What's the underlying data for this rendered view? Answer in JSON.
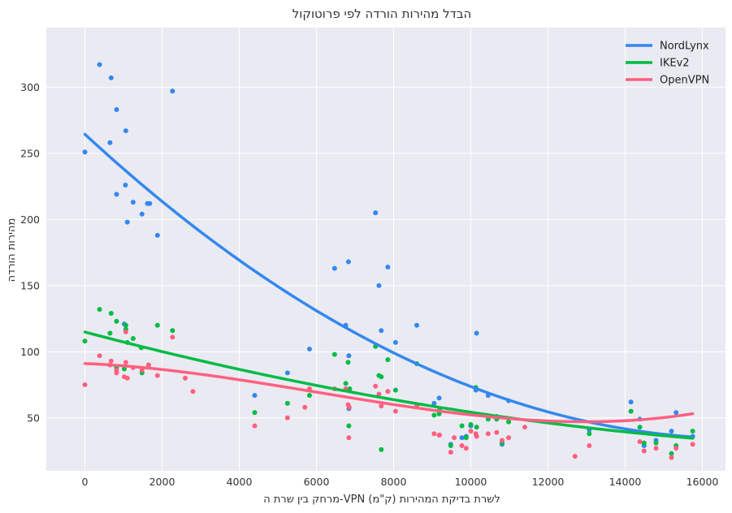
{
  "chart_data": {
    "type": "scatter",
    "title": "הבדל מהירות הורדה לפי פרוטוקול",
    "xlabel": "מרחק בין שרת ה-VPN לשרת בדיקת המהירות (ק\"מ)",
    "ylabel": "מהירות הורדה",
    "xlim": [
      -1000,
      16600
    ],
    "ylim": [
      10,
      345
    ],
    "xticks": [
      0,
      2000,
      4000,
      6000,
      8000,
      10000,
      12000,
      14000,
      16000
    ],
    "yticks": [
      50,
      100,
      150,
      200,
      250,
      300
    ],
    "grid": true,
    "legend_position": "top-right",
    "series": [
      {
        "name": "NordLynx",
        "color": "#3388ee",
        "points": [
          [
            0,
            251
          ],
          [
            380,
            317
          ],
          [
            650,
            258
          ],
          [
            680,
            307
          ],
          [
            820,
            283
          ],
          [
            820,
            219
          ],
          [
            1020,
            121
          ],
          [
            1050,
            226
          ],
          [
            1060,
            267
          ],
          [
            1100,
            198
          ],
          [
            1250,
            213
          ],
          [
            1480,
            204
          ],
          [
            1620,
            212
          ],
          [
            1680,
            212
          ],
          [
            1880,
            188
          ],
          [
            2270,
            297
          ],
          [
            4400,
            67
          ],
          [
            5250,
            84
          ],
          [
            5820,
            102
          ],
          [
            6470,
            163
          ],
          [
            6760,
            120
          ],
          [
            6830,
            168
          ],
          [
            6840,
            97
          ],
          [
            6840,
            57
          ],
          [
            7530,
            205
          ],
          [
            7620,
            150
          ],
          [
            7680,
            116
          ],
          [
            7850,
            164
          ],
          [
            8050,
            107
          ],
          [
            8600,
            120
          ],
          [
            9050,
            61
          ],
          [
            9180,
            65
          ],
          [
            9480,
            30
          ],
          [
            9770,
            35
          ],
          [
            9880,
            36
          ],
          [
            10000,
            44
          ],
          [
            10130,
            71
          ],
          [
            10150,
            114
          ],
          [
            10450,
            67
          ],
          [
            10670,
            51
          ],
          [
            10810,
            30
          ],
          [
            10980,
            63
          ],
          [
            13070,
            41
          ],
          [
            14150,
            62
          ],
          [
            14380,
            49
          ],
          [
            14490,
            29
          ],
          [
            14800,
            33
          ],
          [
            15200,
            40
          ],
          [
            15320,
            54
          ],
          [
            15750,
            36
          ]
        ]
      },
      {
        "name": "IKEv2",
        "color": "#00bb44",
        "points": [
          [
            0,
            108
          ],
          [
            380,
            132
          ],
          [
            650,
            114
          ],
          [
            680,
            129
          ],
          [
            820,
            123
          ],
          [
            820,
            88
          ],
          [
            1020,
            87
          ],
          [
            1060,
            120
          ],
          [
            1060,
            117
          ],
          [
            1100,
            107
          ],
          [
            1250,
            110
          ],
          [
            1460,
            103
          ],
          [
            1480,
            84
          ],
          [
            1650,
            90
          ],
          [
            1880,
            120
          ],
          [
            2270,
            116
          ],
          [
            4400,
            54
          ],
          [
            5250,
            61
          ],
          [
            5820,
            67
          ],
          [
            6470,
            98
          ],
          [
            6760,
            76
          ],
          [
            6820,
            92
          ],
          [
            6840,
            44
          ],
          [
            6860,
            72
          ],
          [
            7530,
            104
          ],
          [
            7620,
            82
          ],
          [
            7680,
            81
          ],
          [
            7680,
            26
          ],
          [
            7850,
            94
          ],
          [
            8050,
            71
          ],
          [
            8600,
            91
          ],
          [
            9050,
            52
          ],
          [
            9180,
            53
          ],
          [
            9190,
            56
          ],
          [
            9480,
            29
          ],
          [
            9770,
            44
          ],
          [
            9880,
            35
          ],
          [
            10000,
            45
          ],
          [
            10130,
            73
          ],
          [
            10150,
            43
          ],
          [
            10450,
            49
          ],
          [
            10670,
            49
          ],
          [
            10810,
            31
          ],
          [
            10980,
            47
          ],
          [
            13070,
            38
          ],
          [
            14150,
            55
          ],
          [
            14380,
            43
          ],
          [
            14490,
            31
          ],
          [
            14800,
            31
          ],
          [
            15200,
            23
          ],
          [
            15320,
            29
          ],
          [
            15750,
            40
          ]
        ]
      },
      {
        "name": "OpenVPN",
        "color": "#ff6080",
        "points": [
          [
            0,
            75
          ],
          [
            380,
            97
          ],
          [
            650,
            90
          ],
          [
            680,
            93
          ],
          [
            820,
            86
          ],
          [
            820,
            84
          ],
          [
            1020,
            81
          ],
          [
            1060,
            92
          ],
          [
            1060,
            115
          ],
          [
            1100,
            80
          ],
          [
            1250,
            88
          ],
          [
            1480,
            86
          ],
          [
            1650,
            90
          ],
          [
            1880,
            82
          ],
          [
            2270,
            111
          ],
          [
            2600,
            80
          ],
          [
            2800,
            70
          ],
          [
            4400,
            44
          ],
          [
            5250,
            50
          ],
          [
            5700,
            58
          ],
          [
            5820,
            72
          ],
          [
            6470,
            72
          ],
          [
            6760,
            72
          ],
          [
            6820,
            60
          ],
          [
            6840,
            35
          ],
          [
            6850,
            58
          ],
          [
            7530,
            74
          ],
          [
            7620,
            68
          ],
          [
            7680,
            59
          ],
          [
            7850,
            70
          ],
          [
            8050,
            55
          ],
          [
            8600,
            59
          ],
          [
            9050,
            38
          ],
          [
            9180,
            37
          ],
          [
            9190,
            37
          ],
          [
            9480,
            24
          ],
          [
            9570,
            35
          ],
          [
            9770,
            29
          ],
          [
            9880,
            27
          ],
          [
            10000,
            40
          ],
          [
            10130,
            38
          ],
          [
            10150,
            36
          ],
          [
            10450,
            38
          ],
          [
            10670,
            39
          ],
          [
            10810,
            33
          ],
          [
            10980,
            35
          ],
          [
            11400,
            43
          ],
          [
            12700,
            21
          ],
          [
            13070,
            29
          ],
          [
            14380,
            32
          ],
          [
            14490,
            25
          ],
          [
            14800,
            27
          ],
          [
            15200,
            20
          ],
          [
            15320,
            27
          ],
          [
            15750,
            30
          ]
        ]
      }
    ],
    "trend_lines": [
      {
        "name": "NordLynx",
        "color": "#3388ee",
        "coeffs": [
          264.4,
          -0.02697,
          7.9e-07
        ]
      },
      {
        "name": "IKEv2",
        "color": "#00bb44",
        "coeffs": [
          114.9,
          -0.00773,
          1.67e-07
        ]
      },
      {
        "name": "OpenVPN",
        "color": "#ff6080",
        "coeffs": [
          91.1,
          -0.00121,
          -5.99e-07,
          3.32e-11
        ]
      }
    ]
  }
}
